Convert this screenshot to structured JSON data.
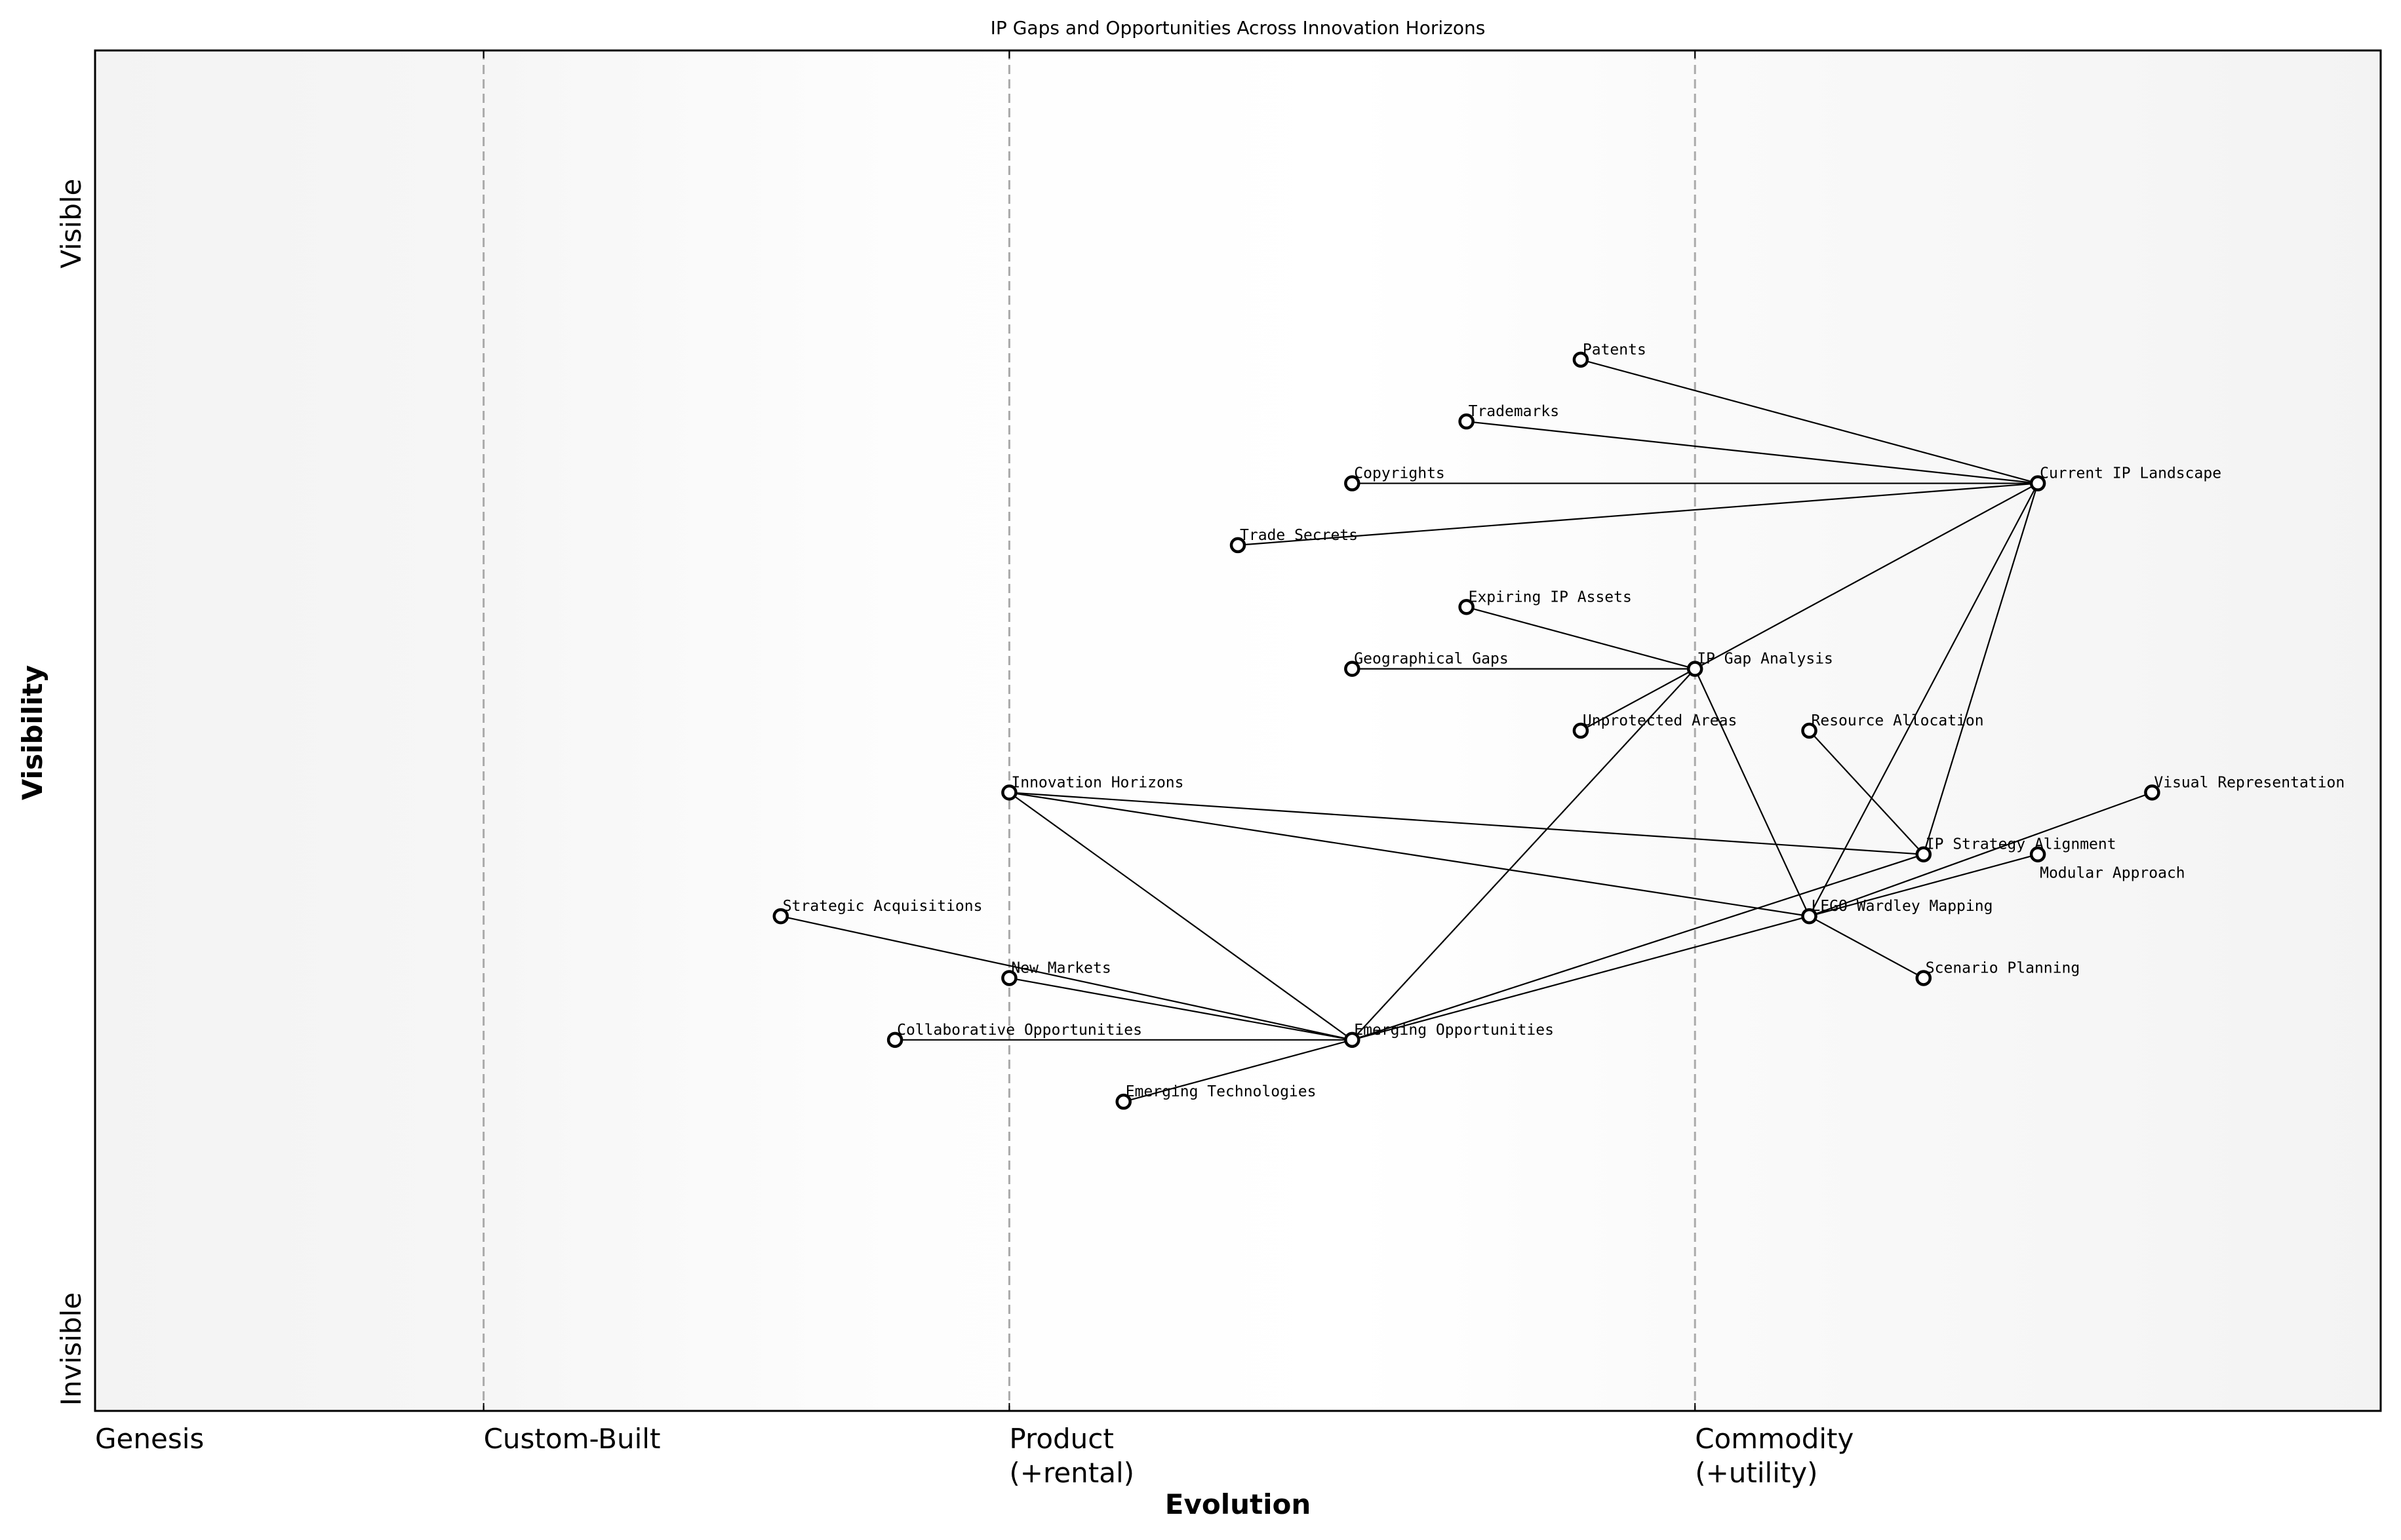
{
  "chart_data": {
    "type": "wardley-map",
    "title": "IP Gaps and Opportunities Across Innovation Horizons",
    "xlabel": "Evolution",
    "ylabel": "Visibility",
    "xlim": [
      0,
      1
    ],
    "ylim": [
      -0.05,
      1.05
    ],
    "x_stages": [
      {
        "label": "Genesis",
        "x": 0.0
      },
      {
        "label": "Custom-Built",
        "x": 0.17
      },
      {
        "label": "Product\n(+rental)",
        "x": 0.4
      },
      {
        "label": "Commodity\n(+utility)",
        "x": 0.7
      }
    ],
    "y_ticks": [
      {
        "label": "Visible",
        "y": 0.91
      },
      {
        "label": "Invisible",
        "y": 0.0
      }
    ],
    "nodes": [
      {
        "name": "Patents",
        "x": 0.65,
        "y": 0.8
      },
      {
        "name": "Trademarks",
        "x": 0.6,
        "y": 0.75
      },
      {
        "name": "Copyrights",
        "x": 0.55,
        "y": 0.7
      },
      {
        "name": "Current IP Landscape",
        "x": 0.85,
        "y": 0.7
      },
      {
        "name": "Trade Secrets",
        "x": 0.5,
        "y": 0.65
      },
      {
        "name": "Expiring IP Assets",
        "x": 0.6,
        "y": 0.6
      },
      {
        "name": "Geographical Gaps",
        "x": 0.55,
        "y": 0.55
      },
      {
        "name": "IP Gap Analysis",
        "x": 0.7,
        "y": 0.55
      },
      {
        "name": "Unprotected Areas",
        "x": 0.65,
        "y": 0.5
      },
      {
        "name": "Resource Allocation",
        "x": 0.75,
        "y": 0.5
      },
      {
        "name": "Innovation Horizons",
        "x": 0.4,
        "y": 0.45
      },
      {
        "name": "Visual Representation",
        "x": 0.9,
        "y": 0.45
      },
      {
        "name": "IP Strategy Alignment",
        "x": 0.8,
        "y": 0.4
      },
      {
        "name": "Modular Approach",
        "x": 0.85,
        "y": 0.4
      },
      {
        "name": "Strategic Acquisitions",
        "x": 0.3,
        "y": 0.35
      },
      {
        "name": "LEGO Wardley Mapping",
        "x": 0.75,
        "y": 0.35
      },
      {
        "name": "New Markets",
        "x": 0.4,
        "y": 0.3
      },
      {
        "name": "Scenario Planning",
        "x": 0.8,
        "y": 0.3
      },
      {
        "name": "Collaborative Opportunities",
        "x": 0.35,
        "y": 0.25
      },
      {
        "name": "Emerging Opportunities",
        "x": 0.55,
        "y": 0.25
      },
      {
        "name": "Emerging Technologies",
        "x": 0.45,
        "y": 0.2
      }
    ],
    "edges": [
      [
        "Current IP Landscape",
        "Patents"
      ],
      [
        "Current IP Landscape",
        "Trademarks"
      ],
      [
        "Current IP Landscape",
        "Copyrights"
      ],
      [
        "Current IP Landscape",
        "Trade Secrets"
      ],
      [
        "Current IP Landscape",
        "IP Gap Analysis"
      ],
      [
        "Current IP Landscape",
        "LEGO Wardley Mapping"
      ],
      [
        "Current IP Landscape",
        "IP Strategy Alignment"
      ],
      [
        "IP Gap Analysis",
        "Expiring IP Assets"
      ],
      [
        "IP Gap Analysis",
        "Geographical Gaps"
      ],
      [
        "IP Gap Analysis",
        "Unprotected Areas"
      ],
      [
        "IP Gap Analysis",
        "Emerging Opportunities"
      ],
      [
        "IP Gap Analysis",
        "LEGO Wardley Mapping"
      ],
      [
        "Resource Allocation",
        "IP Strategy Alignment"
      ],
      [
        "Innovation Horizons",
        "IP Strategy Alignment"
      ],
      [
        "Innovation Horizons",
        "LEGO Wardley Mapping"
      ],
      [
        "Innovation Horizons",
        "Emerging Opportunities"
      ],
      [
        "Emerging Opportunities",
        "Strategic Acquisitions"
      ],
      [
        "Emerging Opportunities",
        "New Markets"
      ],
      [
        "Emerging Opportunities",
        "Collaborative Opportunities"
      ],
      [
        "Emerging Opportunities",
        "Emerging Technologies"
      ],
      [
        "Emerging Opportunities",
        "IP Strategy Alignment"
      ],
      [
        "Emerging Opportunities",
        "LEGO Wardley Mapping"
      ],
      [
        "LEGO Wardley Mapping",
        "Visual Representation"
      ],
      [
        "LEGO Wardley Mapping",
        "Modular Approach"
      ],
      [
        "LEGO Wardley Mapping",
        "Scenario Planning"
      ]
    ],
    "colors": {
      "node_fill": "#ffffff",
      "node_stroke": "#000000",
      "edge": "#000000",
      "stage_line": "#aaaaaa",
      "background_edge": "#f3f3f3",
      "background_center": "#ffffff"
    },
    "grid": false
  }
}
